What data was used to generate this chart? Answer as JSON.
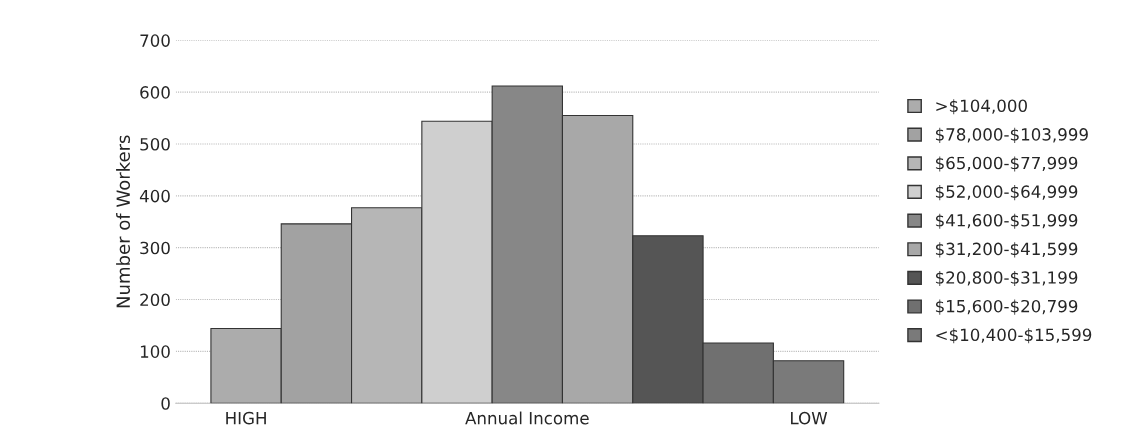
{
  "chart_data": {
    "type": "bar",
    "ylabel": "Number of Workers",
    "categories": [
      "HIGH",
      null,
      null,
      null,
      "Annual Income",
      null,
      null,
      null,
      "LOW"
    ],
    "series": [
      {
        "name": ">$104,000",
        "color": "#acacac",
        "values": [
          144,
          null,
          null,
          null,
          null,
          null,
          null,
          null,
          null
        ]
      },
      {
        "name": "$78,000-$103,999",
        "color": "#a2a2a2",
        "values": [
          null,
          346,
          null,
          null,
          null,
          null,
          null,
          null,
          null
        ]
      },
      {
        "name": "$65,000-$77,999",
        "color": "#b6b6b6",
        "values": [
          null,
          null,
          377,
          null,
          null,
          null,
          null,
          null,
          null
        ]
      },
      {
        "name": "$52,000-$64,999",
        "color": "#cfcfcf",
        "values": [
          null,
          null,
          null,
          544,
          null,
          null,
          null,
          null,
          null
        ]
      },
      {
        "name": "$41,600-$51,999",
        "color": "#878787",
        "values": [
          null,
          null,
          null,
          null,
          612,
          null,
          null,
          null,
          null
        ]
      },
      {
        "name": "$31,200-$41,599",
        "color": "#a8a8a8",
        "values": [
          null,
          null,
          null,
          null,
          null,
          555,
          null,
          null,
          null
        ]
      },
      {
        "name": "$20,800-$31,199",
        "color": "#555555",
        "values": [
          null,
          null,
          null,
          null,
          null,
          null,
          323,
          null,
          null
        ]
      },
      {
        "name": "$15,600-$20,799",
        "color": "#707070",
        "values": [
          null,
          null,
          null,
          null,
          null,
          null,
          null,
          116,
          null
        ]
      },
      {
        "name": "<$10,400-$15,599",
        "color": "#7a7a7a",
        "values": [
          null,
          null,
          null,
          null,
          null,
          null,
          null,
          null,
          82
        ]
      }
    ],
    "ylim": [
      0,
      700
    ],
    "yticks": [
      0,
      100,
      200,
      300,
      400,
      500,
      600,
      700
    ],
    "grid": "y",
    "legend": "right"
  }
}
